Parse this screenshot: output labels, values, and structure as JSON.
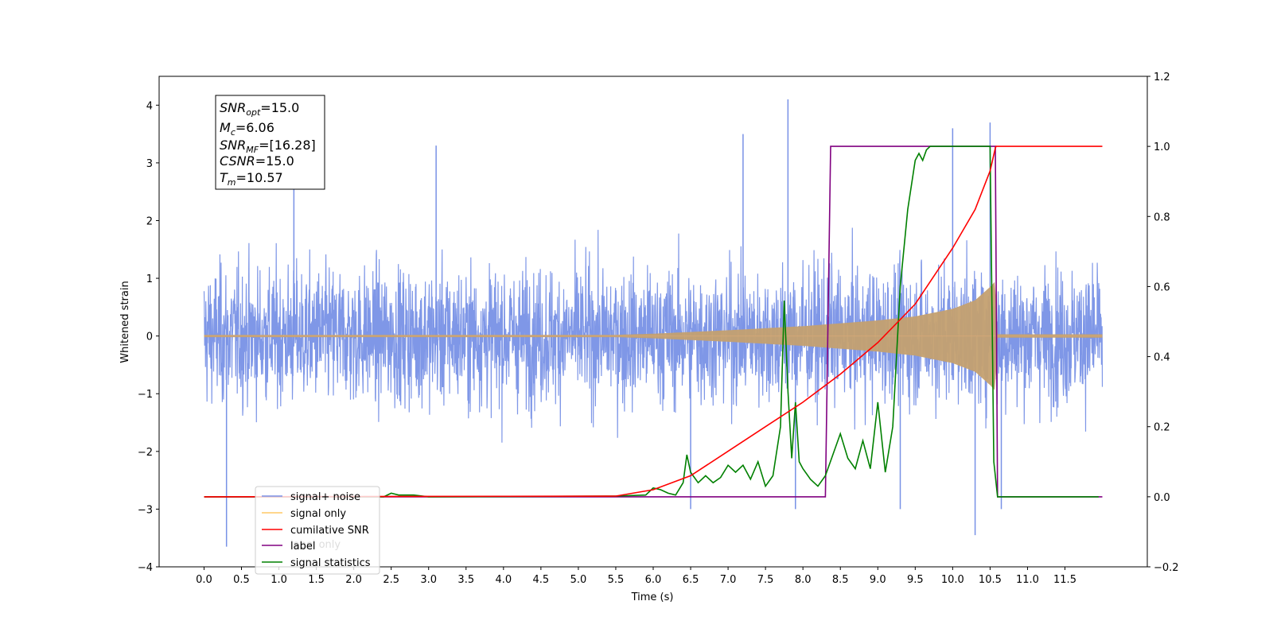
{
  "chart_data": {
    "type": "line",
    "xlabel": "Time (s)",
    "ylabel": "Whitened strain",
    "xlim": [
      -0.6,
      12.6
    ],
    "ylim": [
      -4.0,
      4.5
    ],
    "y2lim": [
      -0.2,
      1.2
    ],
    "x_ticks": [
      "0.0",
      "0.5",
      "1.0",
      "1.5",
      "2.0",
      "2.5",
      "3.0",
      "3.5",
      "4.0",
      "4.5",
      "5.0",
      "5.5",
      "6.0",
      "6.5",
      "7.0",
      "7.5",
      "8.0",
      "8.5",
      "9.0",
      "9.5",
      "10.0",
      "10.5",
      "11.0",
      "11.5"
    ],
    "y_ticks": [
      "4",
      "3",
      "2",
      "1",
      "0",
      "−1",
      "−2",
      "−3",
      "−4"
    ],
    "y2_ticks": [
      "1.2",
      "1.0",
      "0.8",
      "0.6",
      "0.4",
      "0.2",
      "0.0",
      "−0.2"
    ],
    "legend": {
      "position": "lower-left",
      "entries": [
        {
          "label": "signal+ noise",
          "color": "#7891e6"
        },
        {
          "label": "signal only",
          "color": "#ffc966"
        },
        {
          "label": "cumilative SNR",
          "color": "#ff0000"
        },
        {
          "label": "label",
          "color": "#800080"
        },
        {
          "label": "signal statistics",
          "color": "#008000"
        }
      ],
      "hidden_text": "label only"
    },
    "annotation": [
      {
        "base": "SNR",
        "sub": "opt",
        "value": "=15.0"
      },
      {
        "base": "M",
        "sub": "c",
        "value": "=6.06"
      },
      {
        "base": "SNR",
        "sub": "MF",
        "value": "=[16.28]"
      },
      {
        "base": "CSNR",
        "sub": "",
        "value": "=15.0"
      },
      {
        "base": "T",
        "sub": "m",
        "value": "=10.57"
      }
    ],
    "series": [
      {
        "name": "signal+ noise",
        "axis": "left",
        "color": "#7891e6",
        "noise_band": [
          -1.5,
          1.5
        ],
        "spikes": [
          [
            0.3,
            -3.65
          ],
          [
            1.2,
            3.0
          ],
          [
            3.1,
            3.3
          ],
          [
            6.5,
            -3.0
          ],
          [
            7.2,
            3.5
          ],
          [
            7.8,
            4.1
          ],
          [
            7.9,
            -3.0
          ],
          [
            9.3,
            -3.0
          ],
          [
            10.0,
            3.6
          ],
          [
            10.3,
            -3.45
          ],
          [
            10.5,
            3.7
          ],
          [
            10.65,
            -3.0
          ]
        ]
      },
      {
        "name": "signal only",
        "axis": "left",
        "color": "#ffc966",
        "envelope": {
          "x": [
            0.0,
            5.5,
            6.0,
            7.0,
            8.0,
            9.0,
            9.5,
            10.0,
            10.3,
            10.5,
            10.57,
            10.6,
            12.0
          ],
          "amp": [
            0.02,
            0.02,
            0.04,
            0.1,
            0.17,
            0.27,
            0.34,
            0.47,
            0.62,
            0.85,
            0.95,
            0.03,
            0.03
          ]
        }
      },
      {
        "name": "cumilative SNR",
        "axis": "right",
        "color": "#ff0000",
        "x": [
          0.0,
          5.5,
          6.0,
          6.5,
          7.0,
          7.5,
          8.0,
          8.5,
          9.0,
          9.5,
          10.0,
          10.3,
          10.5,
          10.57,
          10.58,
          12.0
        ],
        "y": [
          0.0,
          0.002,
          0.02,
          0.06,
          0.13,
          0.2,
          0.27,
          0.35,
          0.44,
          0.55,
          0.71,
          0.82,
          0.93,
          0.995,
          1.0,
          1.0
        ]
      },
      {
        "name": "label",
        "axis": "right",
        "color": "#800080",
        "x": [
          0.0,
          8.3,
          8.37,
          10.57,
          10.6,
          12.0
        ],
        "y": [
          0.0,
          0.0,
          1.0,
          1.0,
          0.0,
          0.0
        ]
      },
      {
        "name": "signal statistics",
        "axis": "right",
        "color": "#008000",
        "x": [
          0.0,
          2.4,
          2.5,
          2.6,
          2.8,
          3.0,
          5.5,
          5.9,
          6.0,
          6.1,
          6.2,
          6.3,
          6.4,
          6.45,
          6.5,
          6.6,
          6.7,
          6.8,
          6.9,
          7.0,
          7.1,
          7.2,
          7.3,
          7.4,
          7.5,
          7.6,
          7.7,
          7.75,
          7.8,
          7.85,
          7.9,
          7.95,
          8.0,
          8.1,
          8.2,
          8.3,
          8.4,
          8.5,
          8.6,
          8.7,
          8.8,
          8.9,
          9.0,
          9.05,
          9.1,
          9.2,
          9.3,
          9.4,
          9.5,
          9.55,
          9.6,
          9.65,
          9.7,
          9.8,
          10.0,
          10.2,
          10.4,
          10.5,
          10.55,
          10.6,
          11.0,
          11.5,
          11.95
        ],
        "y": [
          0.0,
          0.0,
          0.01,
          0.005,
          0.005,
          0.0,
          0.002,
          0.005,
          0.025,
          0.02,
          0.01,
          0.005,
          0.04,
          0.12,
          0.07,
          0.04,
          0.06,
          0.04,
          0.055,
          0.09,
          0.07,
          0.09,
          0.05,
          0.1,
          0.03,
          0.06,
          0.2,
          0.56,
          0.3,
          0.11,
          0.27,
          0.1,
          0.08,
          0.05,
          0.03,
          0.06,
          0.12,
          0.18,
          0.11,
          0.08,
          0.16,
          0.08,
          0.27,
          0.17,
          0.07,
          0.2,
          0.6,
          0.82,
          0.96,
          0.98,
          0.96,
          0.99,
          1.0,
          1.0,
          1.0,
          1.0,
          1.0,
          1.0,
          0.1,
          0.0,
          0.0,
          0.0,
          0.0
        ]
      }
    ]
  }
}
